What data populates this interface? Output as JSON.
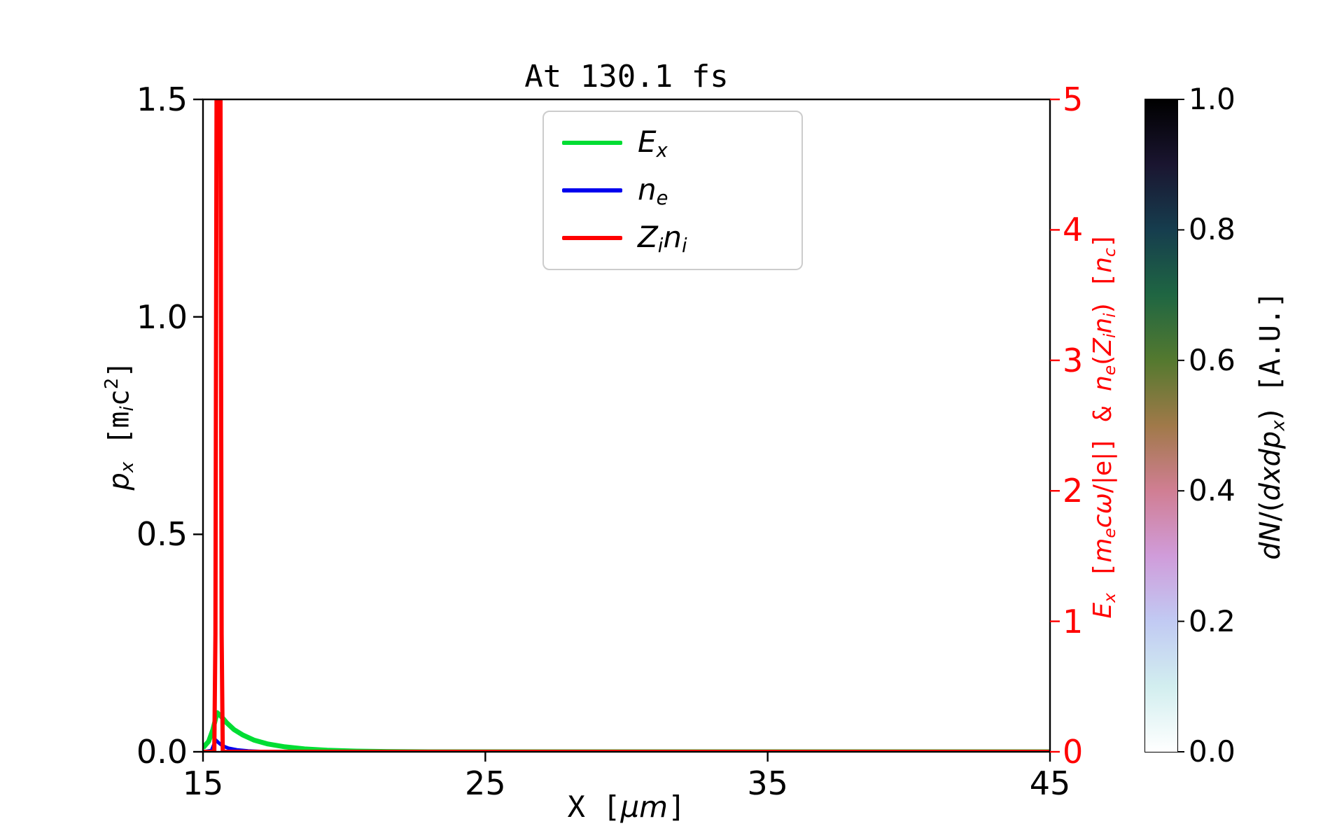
{
  "title": "At 130.1 fs",
  "chart_data": {
    "type": "line",
    "title": "At 130.1 fs",
    "xlabel": "X [μm]",
    "ylabel_left": "p_x [m_i c^2]",
    "ylabel_right": "E_x [m_e cω/|e|] & n_e(Z_i n_i) [n_c]",
    "xlim": [
      15,
      45
    ],
    "ylim_left": [
      0.0,
      1.5
    ],
    "ylim_right": [
      0,
      5
    ],
    "xticks": [
      "15",
      "25",
      "35",
      "45"
    ],
    "yticks_left": [
      "0.0",
      "0.5",
      "1.0",
      "1.5"
    ],
    "yticks_right": [
      "0",
      "1",
      "2",
      "3",
      "4",
      "5"
    ],
    "axis_right_color": "#ff0000",
    "grid": false,
    "legend_position": "upper center",
    "series": [
      {
        "id": "Ex",
        "name": "E_x",
        "axis": "right",
        "color": "#00dd33",
        "x": [
          15.0,
          15.2,
          15.35,
          15.5,
          15.65,
          15.85,
          16.1,
          16.4,
          16.8,
          17.3,
          17.9,
          18.6,
          19.4,
          20.3,
          21.5,
          23.0,
          45.0
        ],
        "y": [
          0.03,
          0.08,
          0.17,
          0.3,
          0.27,
          0.22,
          0.17,
          0.13,
          0.09,
          0.06,
          0.038,
          0.022,
          0.012,
          0.006,
          0.002,
          0.0,
          0.0
        ]
      },
      {
        "id": "ne",
        "name": "n_e",
        "axis": "right",
        "color": "#0000ee",
        "x": [
          15.0,
          15.3,
          15.45,
          15.55,
          15.7,
          15.9,
          16.2,
          16.6,
          17.1,
          17.8,
          45.0
        ],
        "y": [
          0.0,
          0.01,
          0.09,
          0.07,
          0.045,
          0.028,
          0.015,
          0.007,
          0.002,
          0.0,
          0.0
        ]
      },
      {
        "id": "Zini",
        "name": "Z_i n_i",
        "axis": "right",
        "color": "#ff0000",
        "x": [
          15.0,
          15.4,
          15.44,
          15.48,
          15.62,
          15.66,
          15.7,
          45.0
        ],
        "y": [
          0.0,
          0.0,
          0.9,
          5.0,
          5.0,
          0.9,
          0.0,
          0.0
        ]
      }
    ],
    "colorbar": {
      "label": "dN/(dxdp_x) [A.U.]",
      "range": [
        0,
        1
      ],
      "ticks": [
        "0.0",
        "0.2",
        "0.4",
        "0.6",
        "0.8",
        "1.0"
      ],
      "colormap": "cubehelix_r",
      "stops": [
        [
          0.0,
          "#ffffff"
        ],
        [
          0.1,
          "#d2eeef"
        ],
        [
          0.2,
          "#c1caf3"
        ],
        [
          0.3,
          "#d09cda"
        ],
        [
          0.4,
          "#d07e93"
        ],
        [
          0.5,
          "#a07949"
        ],
        [
          0.6,
          "#54792f"
        ],
        [
          0.7,
          "#1f6642"
        ],
        [
          0.8,
          "#163d4e"
        ],
        [
          0.9,
          "#1a1530"
        ],
        [
          1.0,
          "#000000"
        ]
      ]
    }
  },
  "labels_rich": {
    "ylabel_left": [
      {
        "t": "p",
        "s": "i"
      },
      {
        "t": "x",
        "s": "isub"
      },
      {
        "t": " [",
        "s": "mono"
      },
      {
        "t": "m",
        "s": "mono"
      },
      {
        "t": "i",
        "s": "isub"
      },
      {
        "t": "c",
        "s": "mono"
      },
      {
        "t": "2",
        "s": "sup"
      },
      {
        "t": "]",
        "s": "mono"
      }
    ],
    "ylabel_right": [
      {
        "t": "E",
        "s": "i"
      },
      {
        "t": "x",
        "s": "isub"
      },
      {
        "t": " [",
        "s": "mono"
      },
      {
        "t": "m",
        "s": "i"
      },
      {
        "t": "e",
        "s": "isub"
      },
      {
        "t": "c",
        "s": "i"
      },
      {
        "t": "ω",
        "s": "i"
      },
      {
        "t": "/|e|",
        "s": "n"
      },
      {
        "t": "]",
        "s": "mono"
      },
      {
        "t": " & ",
        "s": "mono"
      },
      {
        "t": "n",
        "s": "i"
      },
      {
        "t": "e",
        "s": "isub"
      },
      {
        "t": "(",
        "s": "n"
      },
      {
        "t": "Z",
        "s": "i"
      },
      {
        "t": "i",
        "s": "isub"
      },
      {
        "t": "n",
        "s": "i"
      },
      {
        "t": "i",
        "s": "isub"
      },
      {
        "t": ")",
        "s": "n"
      },
      {
        "t": " [",
        "s": "mono"
      },
      {
        "t": "n",
        "s": "i"
      },
      {
        "t": "c",
        "s": "isub"
      },
      {
        "t": "]",
        "s": "mono"
      }
    ],
    "xlabel": [
      {
        "t": "X [",
        "s": "mono"
      },
      {
        "t": "μm",
        "s": "i"
      },
      {
        "t": "]",
        "s": "mono"
      }
    ],
    "colorbar_label": [
      {
        "t": "d",
        "s": "i"
      },
      {
        "t": "N",
        "s": "i"
      },
      {
        "t": "/(",
        "s": "n"
      },
      {
        "t": "d",
        "s": "i"
      },
      {
        "t": "x",
        "s": "i"
      },
      {
        "t": "d",
        "s": "i"
      },
      {
        "t": "p",
        "s": "i"
      },
      {
        "t": "x",
        "s": "isub"
      },
      {
        "t": ")",
        "s": "n"
      },
      {
        "t": " [A.U.]",
        "s": "mono"
      }
    ],
    "legend": [
      [
        {
          "t": "E",
          "s": "i"
        },
        {
          "t": "x",
          "s": "isub"
        }
      ],
      [
        {
          "t": "n",
          "s": "i"
        },
        {
          "t": "e",
          "s": "isub"
        }
      ],
      [
        {
          "t": "Z",
          "s": "i"
        },
        {
          "t": "i",
          "s": "isub"
        },
        {
          "t": "n",
          "s": "i"
        },
        {
          "t": "i",
          "s": "isub"
        }
      ]
    ]
  }
}
